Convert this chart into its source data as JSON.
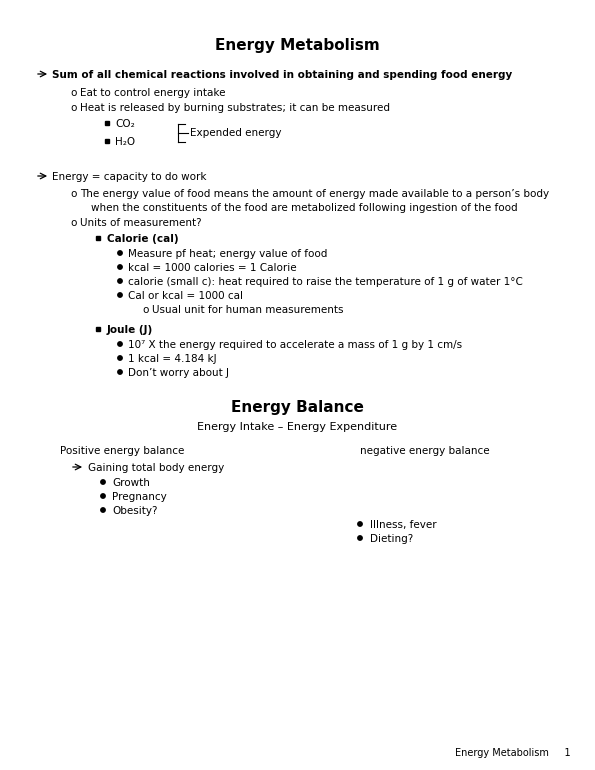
{
  "title": "Energy Metabolism",
  "background_color": "#ffffff",
  "text_color": "#000000",
  "page_width": 5.95,
  "page_height": 7.7,
  "dpi": 100,
  "footer_text": "Energy Metabolism     1",
  "content": {
    "section1_bullet": "Sum of all chemical reactions involved in obtaining and spending food energy",
    "section1_sub1": "Eat to control energy intake",
    "section1_sub2": "Heat is released by burning substrates; it can be measured",
    "co2": "CO₂",
    "h2o": "H₂O",
    "expended": "Expended energy",
    "energy_eq": "Energy = capacity to do work",
    "energy_value_line1": "The energy value of food means the amount of energy made available to a person’s body",
    "energy_value_line2": "when the constituents of the food are metabolized following ingestion of the food",
    "units": "Units of measurement?",
    "calorie_header": "Calorie (cal)",
    "cal_bullet1": "Measure pf heat; energy value of food",
    "cal_bullet2": "kcal = 1000 calories = 1 Calorie",
    "cal_bullet3": "calorie (small c): heat required to raise the temperature of 1 g of water 1°C",
    "cal_bullet4": "Cal or kcal = 1000 cal",
    "cal_sub1": "Usual unit for human measurements",
    "joule_header": "Joule (J)",
    "joule_bullet1": "10⁷ X the energy required to accelerate a mass of 1 g by 1 cm/s",
    "joule_bullet2": "1 kcal = 4.184 kJ",
    "joule_bullet3": "Don’t worry about J",
    "section2_title": "Energy Balance",
    "section2_subtitle": "Energy Intake – Energy Expenditure",
    "pos_label": "Positive energy balance",
    "neg_label": "negative energy balance",
    "pos_arrow": "Gaining total body energy",
    "pos_bullet1": "Growth",
    "pos_bullet2": "Pregnancy",
    "pos_bullet3": "Obesity?",
    "neg_bullet1": "Illness, fever",
    "neg_bullet2": "Dieting?"
  }
}
